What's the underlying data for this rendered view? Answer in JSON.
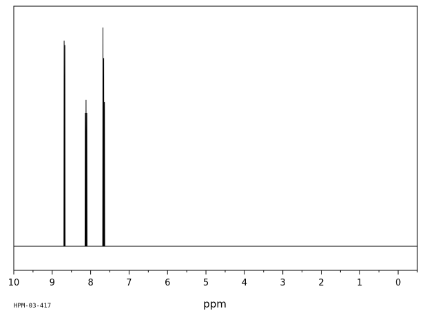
{
  "chart_data": {
    "type": "line",
    "title": "",
    "xlabel": "ppm",
    "ylabel": "",
    "x_reversed": true,
    "xlim": [
      10,
      -0.5
    ],
    "ylim": [
      0,
      1
    ],
    "major_ticks": [
      10,
      9,
      8,
      7,
      6,
      5,
      4,
      3,
      2,
      1,
      0
    ],
    "major_tick_labels": [
      "10",
      "9",
      "8",
      "7",
      "6",
      "5",
      "4",
      "3",
      "2",
      "1",
      "0"
    ],
    "minor_tick_step": 0.5,
    "grid": false,
    "legend": "none",
    "peaks": [
      {
        "ppm": 8.69,
        "intensity": 0.94
      },
      {
        "ppm": 8.67,
        "intensity": 0.92
      },
      {
        "ppm": 8.14,
        "intensity": 0.61
      },
      {
        "ppm": 8.12,
        "intensity": 0.67
      },
      {
        "ppm": 8.1,
        "intensity": 0.61
      },
      {
        "ppm": 7.68,
        "intensity": 1.0
      },
      {
        "ppm": 7.66,
        "intensity": 0.86
      },
      {
        "ppm": 7.64,
        "intensity": 0.66
      }
    ],
    "line_color": "#000000"
  },
  "footer": {
    "sample_id": "HPM-03-417"
  }
}
